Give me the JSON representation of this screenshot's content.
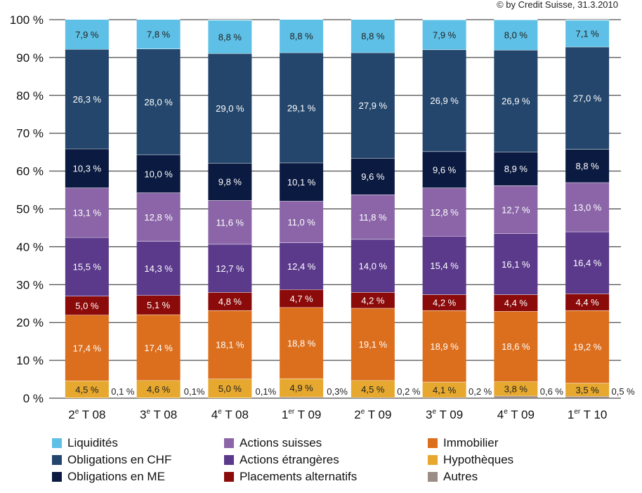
{
  "copyright": "© by Credit Suisse, 31.3.2010",
  "chart_data": {
    "type": "bar",
    "stacked": true,
    "ylim": [
      0,
      100
    ],
    "yticks": [
      "0 %",
      "10 %",
      "20 %",
      "30 %",
      "40 %",
      "50 %",
      "60 %",
      "70 %",
      "80 %",
      "90 %",
      "100 %"
    ],
    "categories": [
      {
        "base": "2",
        "sup": "e",
        "rest": " T 08"
      },
      {
        "base": "3",
        "sup": "e",
        "rest": " T 08"
      },
      {
        "base": "4",
        "sup": "e",
        "rest": " T 08"
      },
      {
        "base": "1",
        "sup": "er",
        "rest": " T 09"
      },
      {
        "base": "2",
        "sup": "e",
        "rest": " T 09"
      },
      {
        "base": "3",
        "sup": "e",
        "rest": " T 09"
      },
      {
        "base": "4",
        "sup": "e",
        "rest": " T 09"
      },
      {
        "base": "1",
        "sup": "er",
        "rest": " T 10"
      }
    ],
    "series": [
      {
        "name": "Autres",
        "color": "#9b8c86",
        "values": [
          0.1,
          0.1,
          0.1,
          0.3,
          0.2,
          0.2,
          0.6,
          0.5
        ],
        "labels": [
          "0,1 %",
          "0,1%",
          "0,1%",
          "0,3%",
          "0,2 %",
          "0,2 %",
          "0,6 %",
          "0,5 %"
        ],
        "label_outside": true
      },
      {
        "name": "Hypothèques",
        "color": "#e6a82e",
        "values": [
          4.5,
          4.6,
          5.0,
          4.9,
          4.5,
          4.1,
          3.8,
          3.5
        ],
        "labels": [
          "4,5 %",
          "4,6 %",
          "5,0 %",
          "4,9 %",
          "4,5 %",
          "4,1 %",
          "3,8 %",
          "3,5 %"
        ],
        "label_color": "#222222"
      },
      {
        "name": "Immobilier",
        "color": "#dc6f1e",
        "values": [
          17.4,
          17.4,
          18.1,
          18.8,
          19.1,
          18.9,
          18.6,
          19.2
        ],
        "labels": [
          "17,4 %",
          "17,4 %",
          "18,1 %",
          "18,8 %",
          "19,1 %",
          "18,9 %",
          "18,6 %",
          "19,2 %"
        ],
        "label_color": "#ffffff"
      },
      {
        "name": "Placements alternatifs",
        "color": "#8b0a0a",
        "values": [
          5.0,
          5.1,
          4.8,
          4.7,
          4.2,
          4.2,
          4.4,
          4.4
        ],
        "labels": [
          "5,0 %",
          "5,1 %",
          "4,8 %",
          "4,7 %",
          "4,2 %",
          "4,2 %",
          "4,4 %",
          "4,4 %"
        ],
        "label_color": "#ffffff"
      },
      {
        "name": "Actions étrangères",
        "color": "#5b3a8c",
        "values": [
          15.5,
          14.3,
          12.7,
          12.4,
          14.0,
          15.4,
          16.1,
          16.4
        ],
        "labels": [
          "15,5 %",
          "14,3 %",
          "12,7 %",
          "12,4 %",
          "14,0 %",
          "15,4 %",
          "16,1 %",
          "16,4 %"
        ],
        "label_color": "#ffffff"
      },
      {
        "name": "Actions suisses",
        "color": "#8b65a8",
        "values": [
          13.1,
          12.8,
          11.6,
          11.0,
          11.8,
          12.8,
          12.7,
          13.0
        ],
        "labels": [
          "13,1 %",
          "12,8 %",
          "11,6 %",
          "11,0 %",
          "11,8 %",
          "12,8 %",
          "12,7 %",
          "13,0 %"
        ],
        "label_color": "#ffffff"
      },
      {
        "name": "Obligations en ME",
        "color": "#0b1a40",
        "values": [
          10.3,
          10.0,
          9.8,
          10.1,
          9.6,
          9.6,
          8.9,
          8.8
        ],
        "labels": [
          "10,3 %",
          "10,0 %",
          "9,8 %",
          "10,1 %",
          "9,6 %",
          "9,6 %",
          "8,9 %",
          "8,8 %"
        ],
        "label_color": "#ffffff"
      },
      {
        "name": "Obligations en CHF",
        "color": "#24466c",
        "values": [
          26.3,
          28.0,
          29.0,
          29.1,
          27.9,
          26.9,
          26.9,
          27.0
        ],
        "labels": [
          "26,3 %",
          "28,0 %",
          "29,0 %",
          "29,1 %",
          "27,9 %",
          "26,9 %",
          "26,9 %",
          "27,0 %"
        ],
        "label_color": "#ffffff"
      },
      {
        "name": "Liquidités",
        "color": "#5ec0e6",
        "values": [
          7.9,
          7.8,
          8.8,
          8.8,
          8.8,
          7.9,
          8.0,
          7.1
        ],
        "labels": [
          "7,9 %",
          "7,8 %",
          "8,8 %",
          "8,8 %",
          "8,8 %",
          "7,9 %",
          "8,0 %",
          "7,1 %"
        ],
        "label_color": "#222222"
      }
    ],
    "legend": [
      {
        "name": "Liquidités",
        "color": "#5ec0e6"
      },
      {
        "name": "Actions suisses",
        "color": "#8b65a8"
      },
      {
        "name": "Immobilier",
        "color": "#dc6f1e"
      },
      {
        "name": "Obligations en CHF",
        "color": "#24466c"
      },
      {
        "name": "Actions étrangères",
        "color": "#5b3a8c"
      },
      {
        "name": "Hypothèques",
        "color": "#e6a82e"
      },
      {
        "name": "Obligations en ME",
        "color": "#0b1a40"
      },
      {
        "name": "Placements alternatifs",
        "color": "#8b0a0a"
      },
      {
        "name": "Autres",
        "color": "#9b8c86"
      }
    ],
    "legend_placement": "bottom",
    "grid": true
  }
}
